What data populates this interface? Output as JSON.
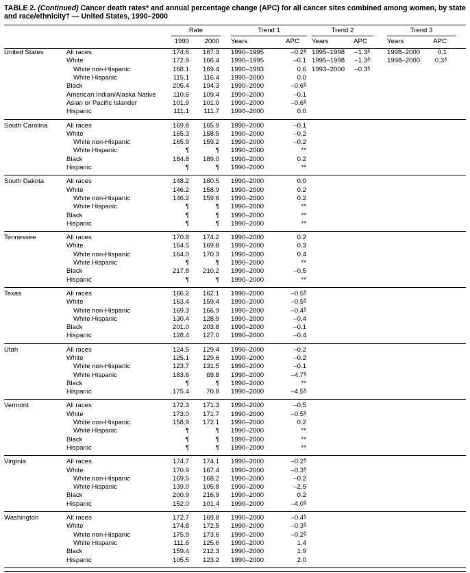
{
  "table": {
    "title": {
      "prefix": "TABLE 2.",
      "continued": "(Continued)",
      "rest": "Cancer death rates* and annual percentage change (APC) for all cancer sites combined among women, by state and race/ethnicity† — United States, 1990–2000"
    },
    "groups": [
      "Rate",
      "Trend 1",
      "Trend 2",
      "Trend 3"
    ],
    "subheaders": {
      "rate_1990": "1990",
      "rate_2000": "2000",
      "trend1_years": "Years",
      "trend1_apc": "APC",
      "trend2_years": "Years",
      "trend2_apc": "APC",
      "trend3_years": "Years",
      "trend3_apc": "APC"
    },
    "sections": [
      {
        "state": "United States",
        "rows": [
          [
            0,
            "All races",
            "174.6",
            "167.3",
            "1990–1995",
            "–0.2§",
            "1995–1998",
            "–1.3§",
            "1998–2000",
            "0.1"
          ],
          [
            0,
            "White",
            "172.9",
            "166.4",
            "1990–1995",
            "–0.1",
            "1995–1998",
            "–1.3§",
            "1998–2000",
            "0.3§"
          ],
          [
            1,
            "White non-Hispanic",
            "168.1",
            "169.4",
            "1990–1993",
            "0.6",
            "1993–2000",
            "–0.3§",
            "",
            ""
          ],
          [
            1,
            "White Hispanic",
            "115.1",
            "116.4",
            "1990–2000",
            "0.0",
            "",
            "",
            "",
            ""
          ],
          [
            0,
            "Black",
            "205.4",
            "194.3",
            "1990–2000",
            "–0.6§",
            "",
            "",
            "",
            ""
          ],
          [
            0,
            "American Indian/Alaska Native",
            "110.6",
            "109.4",
            "1990–2000",
            "–0.1",
            "",
            "",
            "",
            ""
          ],
          [
            0,
            "Asian or Pacific Islander",
            "101.9",
            "101.0",
            "1990–2000",
            "–0.6§",
            "",
            "",
            "",
            ""
          ],
          [
            0,
            "Hispanic",
            "111.1",
            "111.7",
            "1990–2000",
            "0.0",
            "",
            "",
            "",
            ""
          ]
        ]
      },
      {
        "state": "South Carolina",
        "rows": [
          [
            0,
            "All races",
            "169.8",
            "165.9",
            "1990–2000",
            "–0.1",
            "",
            "",
            "",
            ""
          ],
          [
            0,
            "White",
            "165.3",
            "158.5",
            "1990–2000",
            "–0.2",
            "",
            "",
            "",
            ""
          ],
          [
            1,
            "White non-Hispanic",
            "165.9",
            "159.2",
            "1990–2000",
            "–0.2",
            "",
            "",
            "",
            ""
          ],
          [
            1,
            "White Hispanic",
            "¶",
            "¶",
            "1990–2000",
            "**",
            "",
            "",
            "",
            ""
          ],
          [
            0,
            "Black",
            "184.8",
            "189.0",
            "1990–2000",
            "0.2",
            "",
            "",
            "",
            ""
          ],
          [
            0,
            "Hispanic",
            "¶",
            "¶",
            "1990–2000",
            "**",
            "",
            "",
            "",
            ""
          ]
        ]
      },
      {
        "state": "South Dakota",
        "rows": [
          [
            0,
            "All races",
            "148.2",
            "160.5",
            "1990–2000",
            "0.0",
            "",
            "",
            "",
            ""
          ],
          [
            0,
            "White",
            "146.2",
            "158.9",
            "1990–2000",
            "0.2",
            "",
            "",
            "",
            ""
          ],
          [
            1,
            "White non-Hispanic",
            "146.2",
            "159.6",
            "1990–2000",
            "0.2",
            "",
            "",
            "",
            ""
          ],
          [
            1,
            "White Hispanic",
            "¶",
            "¶",
            "1990–2000",
            "**",
            "",
            "",
            "",
            ""
          ],
          [
            0,
            "Black",
            "¶",
            "¶",
            "1990–2000",
            "**",
            "",
            "",
            "",
            ""
          ],
          [
            0,
            "Hispanic",
            "¶",
            "¶",
            "1990–2000",
            "**",
            "",
            "",
            "",
            ""
          ]
        ]
      },
      {
        "state": "Tennessee",
        "rows": [
          [
            0,
            "All races",
            "170.8",
            "174.2",
            "1990–2000",
            "0.2",
            "",
            "",
            "",
            ""
          ],
          [
            0,
            "White",
            "164.5",
            "169.8",
            "1990–2000",
            "0.3",
            "",
            "",
            "",
            ""
          ],
          [
            1,
            "White non-Hispanic",
            "164.0",
            "170.3",
            "1990–2000",
            "0.4",
            "",
            "",
            "",
            ""
          ],
          [
            1,
            "White Hispanic",
            "¶",
            "¶",
            "1990–2000",
            "**",
            "",
            "",
            "",
            ""
          ],
          [
            0,
            "Black",
            "217.8",
            "210.2",
            "1990–2000",
            "–0.5",
            "",
            "",
            "",
            ""
          ],
          [
            0,
            "Hispanic",
            "¶",
            "¶",
            "1990–2000",
            "**",
            "",
            "",
            "",
            ""
          ]
        ]
      },
      {
        "state": "Texas",
        "rows": [
          [
            0,
            "All races",
            "166.2",
            "162.1",
            "1990–2000",
            "–0.5§",
            "",
            "",
            "",
            ""
          ],
          [
            0,
            "White",
            "163.4",
            "159.4",
            "1990–2000",
            "–0.5§",
            "",
            "",
            "",
            ""
          ],
          [
            1,
            "White non-Hispanic",
            "169.3",
            "166.9",
            "1990–2000",
            "–0.4§",
            "",
            "",
            "",
            ""
          ],
          [
            1,
            "White Hispanic",
            "130.4",
            "128.9",
            "1990–2000",
            "–0.4",
            "",
            "",
            "",
            ""
          ],
          [
            0,
            "Black",
            "201.0",
            "203.8",
            "1990–2000",
            "–0.1",
            "",
            "",
            "",
            ""
          ],
          [
            0,
            "Hispanic",
            "128.4",
            "127.0",
            "1990–2000",
            "–0.4",
            "",
            "",
            "",
            ""
          ]
        ]
      },
      {
        "state": "Utah",
        "rows": [
          [
            0,
            "All races",
            "124.5",
            "129.4",
            "1990–2000",
            "–0.2",
            "",
            "",
            "",
            ""
          ],
          [
            0,
            "White",
            "125.1",
            "129.6",
            "1990–2000",
            "–0.2",
            "",
            "",
            "",
            ""
          ],
          [
            1,
            "White non-Hispanic",
            "123.7",
            "131.5",
            "1990–2000",
            "–0.1",
            "",
            "",
            "",
            ""
          ],
          [
            1,
            "White Hispanic",
            "183.6",
            "69.8",
            "1990–2000",
            "–4.7§",
            "",
            "",
            "",
            ""
          ],
          [
            0,
            "Black",
            "¶",
            "¶",
            "1990–2000",
            "**",
            "",
            "",
            "",
            ""
          ],
          [
            0,
            "Hispanic",
            "175.4",
            "70.8",
            "1990–2000",
            "–4.5§",
            "",
            "",
            "",
            ""
          ]
        ]
      },
      {
        "state": "Vermont",
        "rows": [
          [
            0,
            "All races",
            "172.3",
            "171.3",
            "1990–2000",
            "–0.5",
            "",
            "",
            "",
            ""
          ],
          [
            0,
            "White",
            "173.0",
            "171.7",
            "1990–2000",
            "–0.5§",
            "",
            "",
            "",
            ""
          ],
          [
            1,
            "White non-Hispanic",
            "158.9",
            "172.1",
            "1990–2000",
            "0.2",
            "",
            "",
            "",
            ""
          ],
          [
            1,
            "White Hispanic",
            "¶",
            "¶",
            "1990–2000",
            "**",
            "",
            "",
            "",
            ""
          ],
          [
            0,
            "Black",
            "¶",
            "¶",
            "1990–2000",
            "**",
            "",
            "",
            "",
            ""
          ],
          [
            0,
            "Hispanic",
            "¶",
            "¶",
            "1990–2000",
            "**",
            "",
            "",
            "",
            ""
          ]
        ]
      },
      {
        "state": "Virginia",
        "rows": [
          [
            0,
            "All races",
            "174.7",
            "174.1",
            "1990–2000",
            "–0.2§",
            "",
            "",
            "",
            ""
          ],
          [
            0,
            "White",
            "170.9",
            "167.4",
            "1990–2000",
            "–0.3§",
            "",
            "",
            "",
            ""
          ],
          [
            1,
            "White non-Hispanic",
            "169.5",
            "168.2",
            "1990–2000",
            "–0.2",
            "",
            "",
            "",
            ""
          ],
          [
            1,
            "White Hispanic",
            "139.0",
            "105.8",
            "1990–2000",
            "–2.5",
            "",
            "",
            "",
            ""
          ],
          [
            0,
            "Black",
            "200.9",
            "216.9",
            "1990–2000",
            "0.2",
            "",
            "",
            "",
            ""
          ],
          [
            0,
            "Hispanic",
            "152.0",
            "101.4",
            "1990–2000",
            "–4.0§",
            "",
            "",
            "",
            ""
          ]
        ]
      },
      {
        "state": "Washington",
        "rows": [
          [
            0,
            "All races",
            "172.7",
            "169.8",
            "1990–2000",
            "–0.4§",
            "",
            "",
            "",
            ""
          ],
          [
            0,
            "White",
            "174.8",
            "172.5",
            "1990–2000",
            "–0.3§",
            "",
            "",
            "",
            ""
          ],
          [
            1,
            "White non-Hispanic",
            "175.9",
            "173.6",
            "1990–2000",
            "–0.2§",
            "",
            "",
            "",
            ""
          ],
          [
            1,
            "White Hispanic",
            "111.6",
            "125.6",
            "1990–2000",
            "1.4",
            "",
            "",
            "",
            ""
          ],
          [
            0,
            "Black",
            "159.4",
            "212.3",
            "1990–2000",
            "1.9",
            "",
            "",
            "",
            ""
          ],
          [
            0,
            "Hispanic",
            "105.5",
            "123.2",
            "1990–2000",
            "2.0",
            "",
            "",
            "",
            ""
          ]
        ]
      }
    ]
  }
}
